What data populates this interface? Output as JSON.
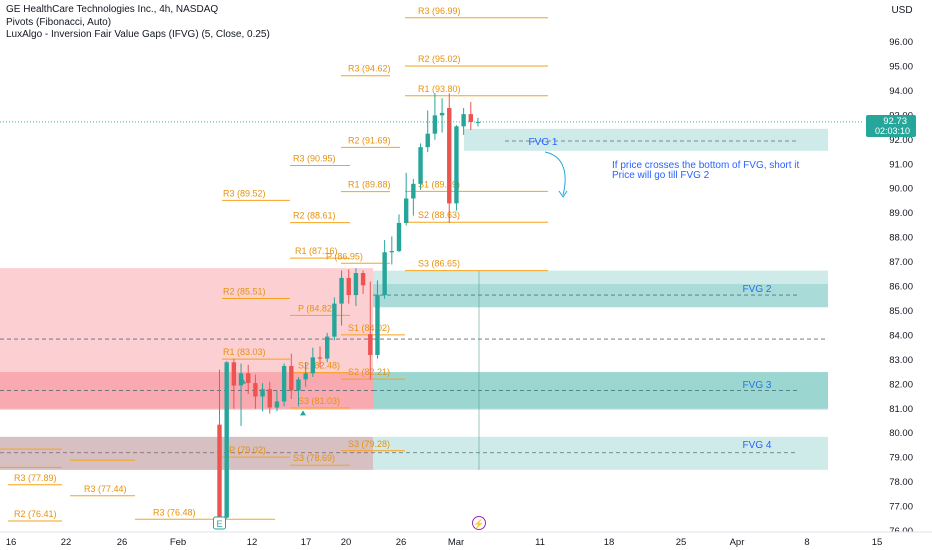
{
  "legend": {
    "symbol_line": "GE HealthCare Technologies Inc., 4h, NASDAQ",
    "indicator_1": "Pivots (Fibonacci, Auto)",
    "indicator_2": "LuxAlgo - Inversion Fair Value Gaps (IFVG) (5, Close, 0.25)"
  },
  "currency_button": "USD",
  "colors": {
    "up": "#26a69a",
    "down": "#ef5350",
    "pivot": "#f7a21b",
    "pivot_text": "#e8910c",
    "fvg_green": "#26a69a",
    "fvg_red": "#f23645",
    "fvg_label": "#2962ff",
    "annotation": "#2962ff",
    "arrow": "#22a9d8"
  },
  "chart_data": {
    "type": "candlestick",
    "title": "GE HealthCare Technologies Inc., 4h, NASDAQ",
    "y_axis": {
      "range": [
        75.8,
        97.7
      ],
      "tick_labels": [
        "76.00",
        "77.00",
        "78.00",
        "79.00",
        "80.00",
        "81.00",
        "82.00",
        "83.00",
        "84.00",
        "85.00",
        "86.00",
        "87.00",
        "88.00",
        "89.00",
        "90.00",
        "91.00",
        "92.00",
        "93.00",
        "94.00",
        "95.00",
        "96.00"
      ]
    },
    "x_axis": {
      "tick_labels": [
        "16",
        "22",
        "26",
        "Feb",
        "12",
        "17",
        "20",
        "26",
        "Mar",
        "11",
        "18",
        "25",
        "Apr",
        "8",
        "15"
      ]
    },
    "last_price": {
      "value": "92.73",
      "countdown": "02:03:10"
    },
    "candles_ohlc": [
      [
        80.35,
        82.6,
        76.2,
        76.55
      ],
      [
        76.55,
        82.95,
        76.5,
        82.9
      ],
      [
        82.9,
        83.05,
        81.0,
        81.95
      ],
      [
        81.95,
        82.85,
        80.3,
        82.45
      ],
      [
        82.45,
        82.8,
        81.6,
        82.05
      ],
      [
        82.05,
        82.4,
        81.0,
        81.5
      ],
      [
        81.5,
        82.05,
        80.9,
        81.8
      ],
      [
        81.8,
        82.1,
        80.8,
        81.05
      ],
      [
        81.05,
        81.75,
        80.9,
        81.3
      ],
      [
        81.3,
        82.85,
        81.1,
        82.75
      ],
      [
        82.75,
        83.25,
        81.4,
        81.75
      ],
      [
        81.75,
        82.3,
        81.1,
        82.2
      ],
      [
        82.2,
        82.9,
        81.9,
        82.45
      ],
      [
        82.45,
        83.5,
        82.3,
        83.1
      ],
      [
        83.1,
        83.55,
        82.7,
        83.05
      ],
      [
        83.05,
        84.1,
        82.9,
        83.95
      ],
      [
        83.95,
        85.55,
        83.8,
        85.3
      ],
      [
        85.3,
        86.65,
        84.4,
        86.35
      ],
      [
        86.35,
        86.7,
        85.3,
        85.65
      ],
      [
        85.65,
        86.75,
        85.2,
        86.55
      ],
      [
        86.55,
        86.65,
        85.7,
        86.05
      ],
      [
        84.05,
        86.2,
        82.2,
        83.2
      ],
      [
        83.2,
        86.25,
        83.05,
        85.65
      ],
      [
        85.65,
        87.9,
        85.5,
        87.4
      ],
      [
        87.4,
        88.05,
        86.9,
        87.45
      ],
      [
        87.45,
        88.95,
        87.4,
        88.6
      ],
      [
        88.6,
        90.65,
        88.5,
        89.6
      ],
      [
        89.6,
        90.4,
        88.9,
        90.2
      ],
      [
        90.2,
        91.85,
        89.95,
        91.7
      ],
      [
        91.7,
        93.2,
        91.5,
        92.25
      ],
      [
        92.25,
        93.9,
        92.0,
        93.0
      ],
      [
        93.0,
        93.7,
        92.3,
        93.1
      ],
      [
        93.3,
        93.9,
        88.6,
        89.4
      ],
      [
        89.4,
        92.6,
        89.1,
        92.55
      ],
      [
        92.55,
        93.3,
        92.2,
        93.05
      ],
      [
        93.05,
        93.55,
        92.4,
        92.73
      ],
      [
        92.73,
        92.9,
        92.55,
        92.73
      ]
    ],
    "pivot_levels": [
      {
        "label": "R3 (96.99)",
        "value": 96.99
      },
      {
        "label": "R2 (95.02)",
        "value": 95.02
      },
      {
        "label": "R1 (93.80)",
        "value": 93.8
      },
      {
        "label": "R3 (94.62)",
        "value": 94.62
      },
      {
        "label": "R2 (91.69)",
        "value": 91.69
      },
      {
        "label": "R3 (90.95)",
        "value": 90.95
      },
      {
        "label": "R1 (89.88)",
        "value": 89.88
      },
      {
        "label": "S1 (89.89)",
        "value": 89.89
      },
      {
        "label": "R3 (89.52)",
        "value": 89.52
      },
      {
        "label": "R2 (88.61)",
        "value": 88.61
      },
      {
        "label": "S2 (88.63)",
        "value": 88.63
      },
      {
        "label": "R1 (87.16)",
        "value": 87.16
      },
      {
        "label": "P (86.95)",
        "value": 86.95
      },
      {
        "label": "S3 (86.65)",
        "value": 86.65
      },
      {
        "label": "R2 (85.51)",
        "value": 85.51
      },
      {
        "label": "P (84.82)",
        "value": 84.82
      },
      {
        "label": "S1 (84.02)",
        "value": 84.02
      },
      {
        "label": "R1 (83.03)",
        "value": 83.03
      },
      {
        "label": "S2 (82.48)",
        "value": 82.48
      },
      {
        "label": "S2 (82.21)",
        "value": 82.21
      },
      {
        "label": "S3 (81.03)",
        "value": 81.03
      },
      {
        "label": "S3 (79.28)",
        "value": 79.28
      },
      {
        "label": "P (79.02)",
        "value": 79.02
      },
      {
        "label": "S3 (78.69)",
        "value": 78.69
      },
      {
        "label": "R3 (77.89)",
        "value": 77.89
      },
      {
        "label": "R3 (77.44)",
        "value": 77.44
      },
      {
        "label": "R2 (76.41)",
        "value": 76.41
      },
      {
        "label": "R3 (76.48)",
        "value": 76.48
      }
    ],
    "fvg_zones": [
      {
        "label": "FVG 1",
        "top": 92.45,
        "bottom": 91.55,
        "mid": 91.95,
        "color": "green"
      },
      {
        "label": "FVG 2",
        "top": 86.65,
        "bottom": 85.15,
        "mid": 85.65,
        "color": "green"
      },
      {
        "label": "FVG 3",
        "top": 82.5,
        "bottom": 80.95,
        "mid": 81.75,
        "color": "green"
      },
      {
        "label": "FVG 4",
        "top": 79.85,
        "bottom": 78.5,
        "mid": 79.2,
        "color": "green"
      },
      {
        "label": "",
        "top": 86.75,
        "bottom": 80.95,
        "mid": 83.85,
        "color": "red"
      },
      {
        "label": "",
        "top": 82.5,
        "bottom": 81.0,
        "mid": 81.75,
        "color": "red"
      },
      {
        "label": "",
        "top": 79.85,
        "bottom": 78.5,
        "mid": 79.2,
        "color": "red"
      }
    ],
    "annotation": [
      "If price crosses the bottom of FVG, short it",
      "Price will go till FVG 2"
    ],
    "earnings_marker": "E",
    "dividend_marker": "⚡"
  }
}
